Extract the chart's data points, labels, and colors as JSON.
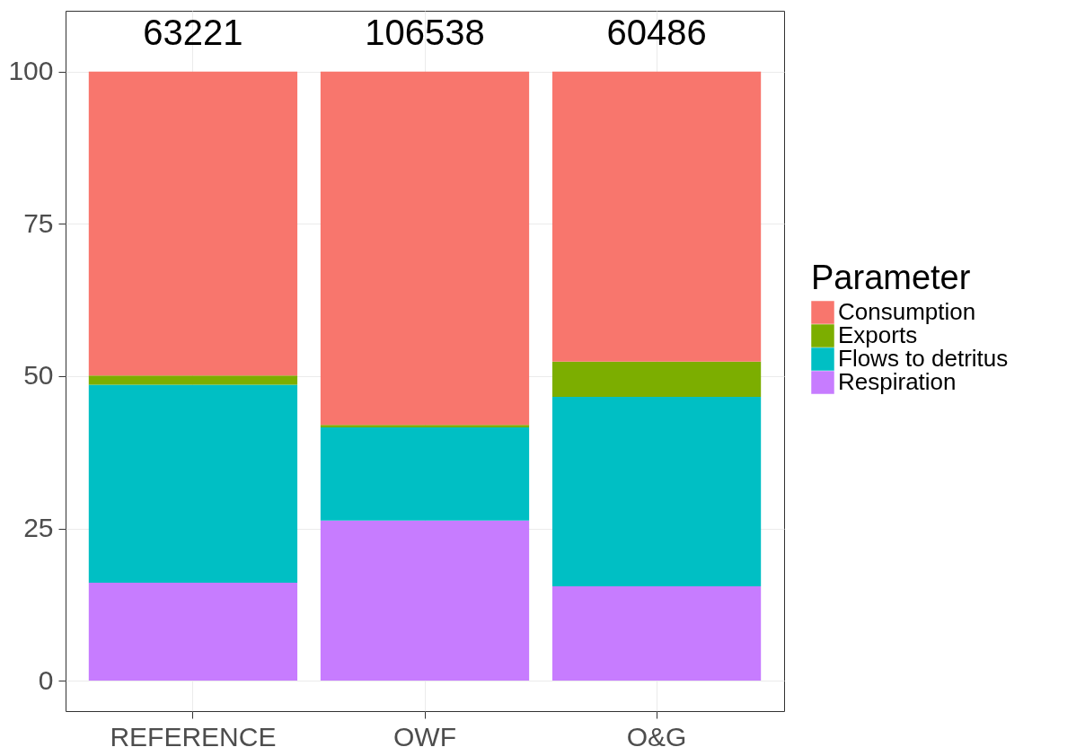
{
  "chart_data": {
    "type": "bar",
    "stacked": true,
    "legend_title": "Parameter",
    "legend": "right",
    "grid": true,
    "categories": [
      "REFERENCE",
      "OWF",
      "O&G"
    ],
    "series": [
      {
        "name": "Respiration",
        "color": "#c77cff",
        "values": [
          16.1,
          26.3,
          15.5
        ]
      },
      {
        "name": "Flows to detritus",
        "color": "#00bfc4",
        "values": [
          32.5,
          15.3,
          31.1
        ]
      },
      {
        "name": "Exports",
        "color": "#7cae00",
        "values": [
          1.5,
          0.4,
          5.8
        ]
      },
      {
        "name": "Consumption",
        "color": "#f8766d",
        "values": [
          49.9,
          58.0,
          47.6
        ]
      }
    ],
    "annotations": [
      {
        "text": "63221",
        "x": "REFERENCE",
        "y": 100
      },
      {
        "text": "106538",
        "x": "OWF",
        "y": 100
      },
      {
        "text": "60486",
        "x": "O&G",
        "y": 100
      }
    ],
    "ylim": [
      -5,
      110
    ],
    "yticks": [
      0,
      25,
      50,
      75,
      100
    ]
  }
}
